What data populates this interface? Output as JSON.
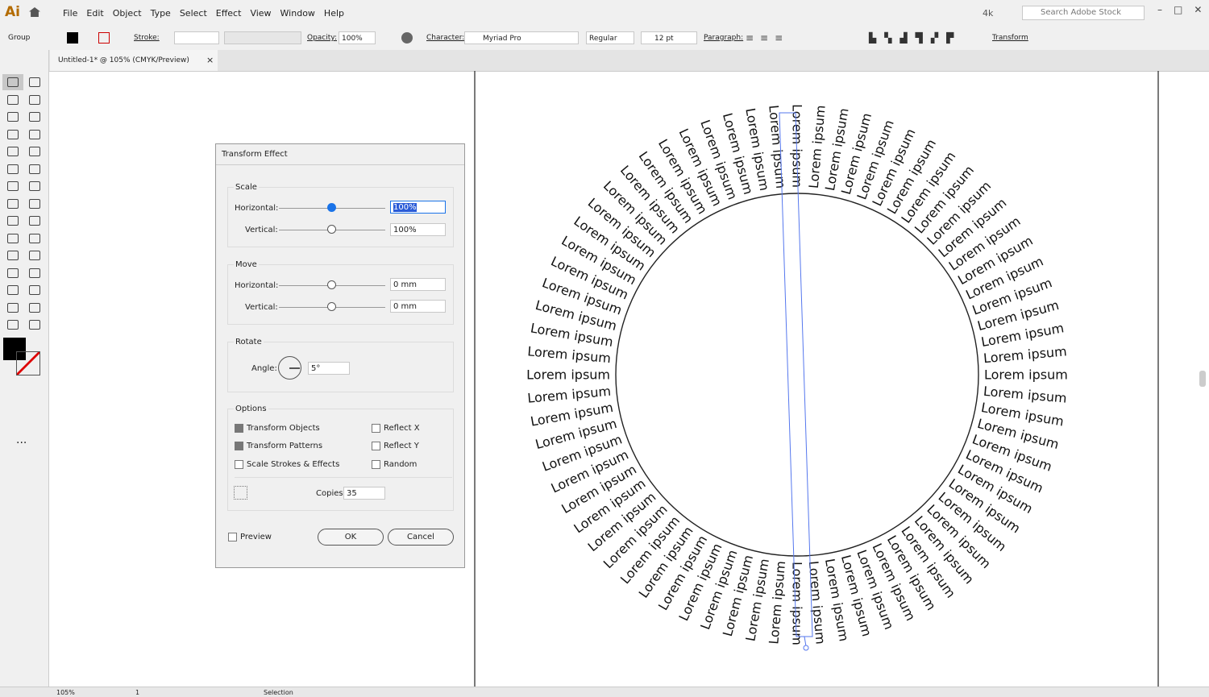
{
  "app_logo": "Ai",
  "menu": {
    "items": [
      "File",
      "Edit",
      "Object",
      "Type",
      "Select",
      "Effect",
      "View",
      "Window",
      "Help"
    ],
    "workspace": "4k",
    "search": "Search Adobe Stock"
  },
  "control_bar": {
    "selection": "Group",
    "stroke_label": "Stroke:",
    "opacity_label": "Opacity:",
    "opacity": "100%",
    "character_label": "Character:",
    "font": "Myriad Pro",
    "style": "Regular",
    "size": "12 pt",
    "paragraph_label": "Paragraph:",
    "transform": "Transform"
  },
  "tab": {
    "title": "Untitled-1* @ 105% (CMYK/Preview)",
    "close": "×"
  },
  "dialog": {
    "title": "Transform Effect",
    "scale": {
      "label": "Scale",
      "horizontal_label": "Horizontal:",
      "horizontal": "100%",
      "vertical_label": "Vertical:",
      "vertical": "100%"
    },
    "move": {
      "label": "Move",
      "horizontal_label": "Horizontal:",
      "horizontal": "0 mm",
      "vertical_label": "Vertical:",
      "vertical": "0 mm"
    },
    "rotate": {
      "label": "Rotate",
      "angle_label": "Angle:",
      "angle": "5°"
    },
    "options": {
      "label": "Options",
      "transform_objects": "Transform Objects",
      "transform_patterns": "Transform Patterns",
      "scale_strokes": "Scale Strokes & Effects",
      "reflect_x": "Reflect X",
      "reflect_y": "Reflect Y",
      "random": "Random",
      "copies_label": "Copies",
      "copies": "35"
    },
    "preview": "Preview",
    "ok": "OK",
    "cancel": "Cancel"
  },
  "artwork": {
    "label": "Lorem ipsum"
  },
  "status_bar": {
    "zoom": "105%",
    "artboard": "1",
    "tool": "Selection"
  }
}
